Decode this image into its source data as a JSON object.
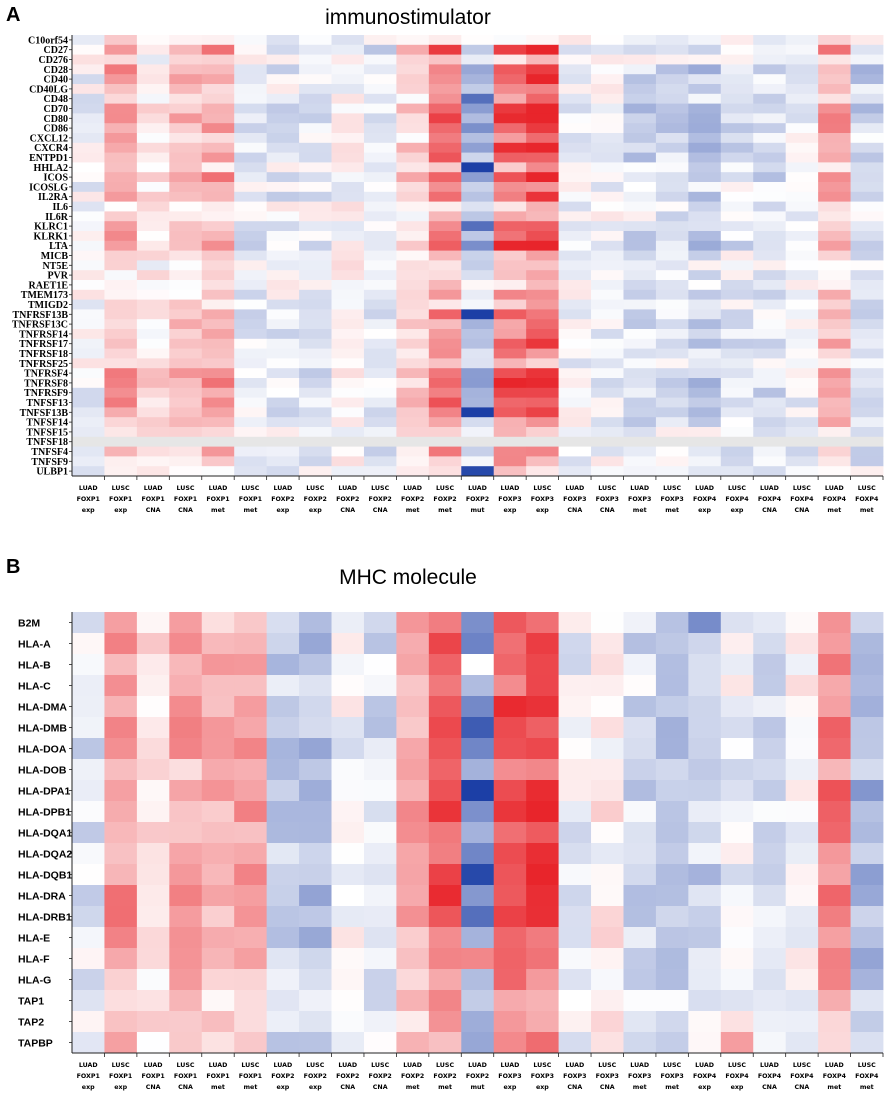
{
  "chart_data": [
    {
      "type": "heatmap",
      "panel_letter": "A",
      "title": "immunostimulator",
      "color_scale": {
        "low": "#1c3fa6",
        "mid": "#ffffff",
        "high": "#e8252b"
      },
      "columns": [
        [
          "LUAD",
          "FOXP1",
          "exp"
        ],
        [
          "LUSC",
          "FOXP1",
          "exp"
        ],
        [
          "LUAD",
          "FOXP1",
          "CNA"
        ],
        [
          "LUSC",
          "FOXP1",
          "CNA"
        ],
        [
          "LUAD",
          "FOXP1",
          "met"
        ],
        [
          "LUSC",
          "FOXP1",
          "met"
        ],
        [
          "LUAD",
          "FOXP2",
          "exp"
        ],
        [
          "LUSC",
          "FOXP2",
          "exp"
        ],
        [
          "LUAD",
          "FOXP2",
          "CNA"
        ],
        [
          "LUSC",
          "FOXP2",
          "CNA"
        ],
        [
          "LUAD",
          "FOXP2",
          "met"
        ],
        [
          "LUSC",
          "FOXP2",
          "met"
        ],
        [
          "LUAD",
          "FOXP2",
          "mut"
        ],
        [
          "LUAD",
          "FOXP3",
          "exp"
        ],
        [
          "LUSC",
          "FOXP3",
          "exp"
        ],
        [
          "LUAD",
          "FOXP3",
          "CNA"
        ],
        [
          "LUSC",
          "FOXP3",
          "CNA"
        ],
        [
          "LUAD",
          "FOXP3",
          "met"
        ],
        [
          "LUSC",
          "FOXP3",
          "met"
        ],
        [
          "LUAD",
          "FOXP4",
          "exp"
        ],
        [
          "LUSC",
          "FOXP4",
          "exp"
        ],
        [
          "LUAD",
          "FOXP4",
          "CNA"
        ],
        [
          "LUSC",
          "FOXP4",
          "CNA"
        ],
        [
          "LUAD",
          "FOXP4",
          "met"
        ],
        [
          "LUSC",
          "FOXP4",
          "met"
        ]
      ],
      "rows": [
        "C10orf54",
        "CD27",
        "CD276",
        "CD28",
        "CD40",
        "CD40LG",
        "CD48",
        "CD70",
        "CD80",
        "CD86",
        "CXCL12",
        "CXCR4",
        "ENTPD1",
        "HHLA2",
        "ICOS",
        "ICOSLG",
        "IL2RA",
        "IL6",
        "IL6R",
        "KLRC1",
        "KLRK1",
        "LTA",
        "MICB",
        "NT5E",
        "PVR",
        "RAET1E",
        "TMEM173",
        "TMIGD2",
        "TNFRSF13B",
        "TNFRSF13C",
        "TNFRSF14",
        "TNFRSF17",
        "TNFRSF18",
        "TNFRSF25",
        "TNFRSF4",
        "TNFRSF8",
        "TNFRSF9",
        "TNFSF13",
        "TNFSF13B",
        "TNFSF14",
        "TNFSF15",
        "TNFSF18",
        "TNFSF4",
        "TNFSF9",
        "ULBP1"
      ],
      "column_profile": [
        -0.05,
        0.4,
        0.15,
        0.3,
        0.4,
        -0.1,
        -0.1,
        -0.12,
        0.02,
        -0.12,
        0.2,
        0.6,
        -0.35,
        0.7,
        0.8,
        -0.05,
        -0.05,
        -0.2,
        -0.2,
        -0.25,
        -0.12,
        -0.15,
        -0.08,
        0.4,
        -0.22
      ],
      "row_profile": [
        0.2,
        1.25,
        0.3,
        1.15,
        1.05,
        0.55,
        0.75,
        1.2,
        1.2,
        1.2,
        0.8,
        1.2,
        1.1,
        0.5,
        1.25,
        0.75,
        1.05,
        0.4,
        0.4,
        0.8,
        1.15,
        1.2,
        0.55,
        0.3,
        0.3,
        0.3,
        0.55,
        0.45,
        0.95,
        0.8,
        0.8,
        0.95,
        0.7,
        0.45,
        1.1,
        1.25,
        1.2,
        1.1,
        1.1,
        0.7,
        0.35,
        0.15,
        0.8,
        0.55,
        0.3
      ],
      "cell_overrides": [
        {
          "row": "HHLA2",
          "col": 12,
          "value": -1.0
        },
        {
          "row": "TNFRSF13B",
          "col": 12,
          "value": -1.0
        },
        {
          "row": "TNFSF13B",
          "col": 12,
          "value": -1.0
        },
        {
          "row": "CD48",
          "col": 12,
          "value": -0.75
        },
        {
          "row": "ULBP1",
          "col": 12,
          "value": -0.95
        },
        {
          "row": "KLRC1",
          "col": 12,
          "value": -0.75
        },
        {
          "row": "LTA",
          "col": 14,
          "value": 1.0
        },
        {
          "row": "ICOS",
          "col": 14,
          "value": 1.0
        },
        {
          "row": "CD40",
          "col": 14,
          "value": 1.0
        }
      ],
      "na_rows": [
        "TNFSF18"
      ]
    },
    {
      "type": "heatmap",
      "panel_letter": "B",
      "title": "MHC molecule",
      "color_scale": {
        "low": "#1c3fa6",
        "mid": "#ffffff",
        "high": "#e8252b"
      },
      "columns": [
        [
          "LUAD",
          "FOXP1",
          "exp"
        ],
        [
          "LUSC",
          "FOXP1",
          "exp"
        ],
        [
          "LUAD",
          "FOXP1",
          "CNA"
        ],
        [
          "LUSC",
          "FOXP1",
          "CNA"
        ],
        [
          "LUAD",
          "FOXP1",
          "met"
        ],
        [
          "LUSC",
          "FOXP1",
          "met"
        ],
        [
          "LUAD",
          "FOXP2",
          "exp"
        ],
        [
          "LUSC",
          "FOXP2",
          "exp"
        ],
        [
          "LUAD",
          "FOXP2",
          "CNA"
        ],
        [
          "LUSC",
          "FOXP2",
          "CNA"
        ],
        [
          "LUAD",
          "FOXP2",
          "met"
        ],
        [
          "LUSC",
          "FOXP2",
          "met"
        ],
        [
          "LUAD",
          "FOXP2",
          "mut"
        ],
        [
          "LUAD",
          "FOXP3",
          "exp"
        ],
        [
          "LUSC",
          "FOXP3",
          "exp"
        ],
        [
          "LUAD",
          "FOXP3",
          "CNA"
        ],
        [
          "LUSC",
          "FOXP3",
          "CNA"
        ],
        [
          "LUAD",
          "FOXP3",
          "met"
        ],
        [
          "LUSC",
          "FOXP3",
          "met"
        ],
        [
          "LUAD",
          "FOXP4",
          "exp"
        ],
        [
          "LUSC",
          "FOXP4",
          "exp"
        ],
        [
          "LUAD",
          "FOXP4",
          "CNA"
        ],
        [
          "LUSC",
          "FOXP4",
          "CNA"
        ],
        [
          "LUAD",
          "FOXP4",
          "met"
        ],
        [
          "LUSC",
          "FOXP4",
          "met"
        ]
      ],
      "rows": [
        "B2M",
        "HLA-A",
        "HLA-B",
        "HLA-C",
        "HLA-DMA",
        "HLA-DMB",
        "HLA-DOA",
        "HLA-DOB",
        "HLA-DPA1",
        "HLA-DPB1",
        "HLA-DQA1",
        "HLA-DQA2",
        "HLA-DQB1",
        "HLA-DRA",
        "HLA-DRB1",
        "HLA-E",
        "HLA-F",
        "HLA-G",
        "TAP1",
        "TAP2",
        "TAPBP"
      ],
      "column_profile": [
        -0.12,
        0.4,
        0.12,
        0.35,
        0.3,
        0.4,
        -0.25,
        -0.3,
        -0.02,
        -0.15,
        0.35,
        0.65,
        -0.45,
        0.7,
        0.75,
        -0.05,
        0.05,
        -0.15,
        -0.25,
        -0.2,
        -0.05,
        -0.12,
        0.02,
        0.5,
        -0.3
      ],
      "row_profile": [
        1.0,
        1.05,
        1.1,
        1.0,
        1.2,
        1.2,
        1.15,
        0.9,
        1.25,
        1.25,
        1.1,
        1.05,
        1.15,
        1.25,
        1.25,
        1.0,
        1.05,
        0.85,
        0.65,
        0.6,
        0.7
      ],
      "cell_overrides": [
        {
          "row": "HLA-DPA1",
          "col": 12,
          "value": -1.0
        },
        {
          "row": "HLA-DQB1",
          "col": 12,
          "value": -0.95
        },
        {
          "row": "HLA-DMB",
          "col": 12,
          "value": -0.85
        },
        {
          "row": "HLA-DRB1",
          "col": 12,
          "value": -0.75
        },
        {
          "row": "HLA-F",
          "col": 12,
          "value": 0.55
        },
        {
          "row": "B2M",
          "col": 19,
          "value": -0.6
        },
        {
          "row": "TAPBP",
          "col": 20,
          "value": 0.45
        },
        {
          "row": "HLA-B",
          "col": 12,
          "value": 0.0
        }
      ],
      "na_rows": []
    }
  ]
}
